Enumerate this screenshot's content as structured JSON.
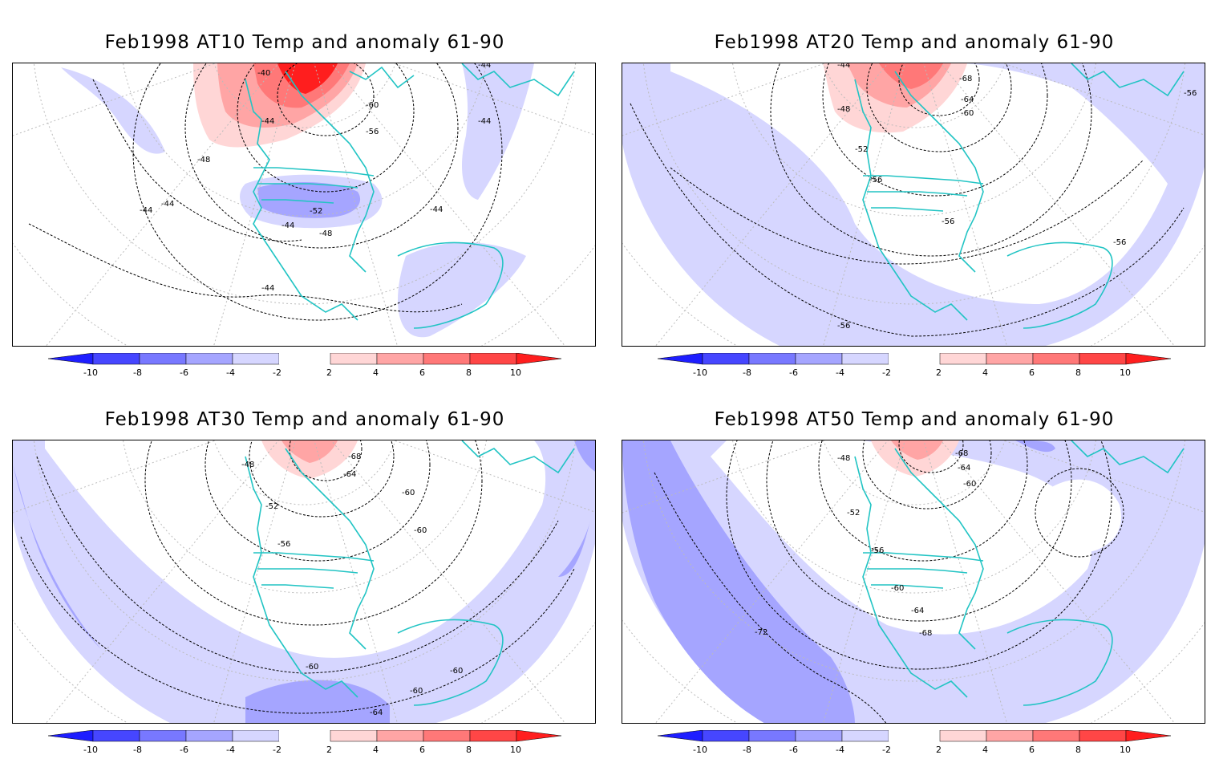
{
  "panels": [
    {
      "title": "Feb1998 AT10 Temp and anomaly 61-90",
      "contour_labels": [
        "-40",
        "-44",
        "-44",
        "-44",
        "-44",
        "-44",
        "-44",
        "-44",
        "-44",
        "-48",
        "-48",
        "-52",
        "-56",
        "-60"
      ],
      "anomaly_features": {
        "warm": "Arctic / northern Canada warm anomaly up to +10",
        "cold": "central US cold anomaly -4 to -6"
      }
    },
    {
      "title": "Feb1998 AT20 Temp and anomaly 61-90",
      "contour_labels": [
        "-44",
        "-48",
        "-52",
        "-56",
        "-56",
        "-56",
        "-56",
        "-56",
        "-60",
        "-64",
        "-68"
      ],
      "anomaly_features": {
        "warm": "Arctic warm anomaly +2 to +6",
        "cold": "broad cold anomaly -2 to -4 over Pacific and Atlantic"
      }
    },
    {
      "title": "Feb1998 AT30 Temp and anomaly 61-90",
      "contour_labels": [
        "-48",
        "-52",
        "-56",
        "-60",
        "-60",
        "-60",
        "-60",
        "-60",
        "-64",
        "-64",
        "-68"
      ],
      "anomaly_features": {
        "warm": "Arctic warm anomaly +2 to +4",
        "cold": "outer ring cold anomaly -2 to -6"
      }
    },
    {
      "title": "Feb1998 AT50 Temp and anomaly 61-90",
      "contour_labels": [
        "-48",
        "-52",
        "-56",
        "-60",
        "-60",
        "-64",
        "-64",
        "-68",
        "-68",
        "-72"
      ],
      "anomaly_features": {
        "warm": "Arctic warm anomaly +2 to +4",
        "cold": "Pacific cold anomaly -4 to -6"
      }
    }
  ],
  "colorbar": {
    "tick_labels": [
      "-10",
      "-8",
      "-6",
      "-4",
      "-2",
      "2",
      "4",
      "6",
      "8",
      "10"
    ],
    "colors": [
      "#1e1eff",
      "#4646ff",
      "#7878ff",
      "#a5a5ff",
      "#d6d6ff",
      "#ffffff",
      "#ffd6d6",
      "#ffa5a5",
      "#ff7878",
      "#ff4646",
      "#ff1e1e"
    ]
  },
  "colors": {
    "coast": "#22c4c4",
    "contour": "#000000",
    "grid": "#bbbbbb"
  }
}
